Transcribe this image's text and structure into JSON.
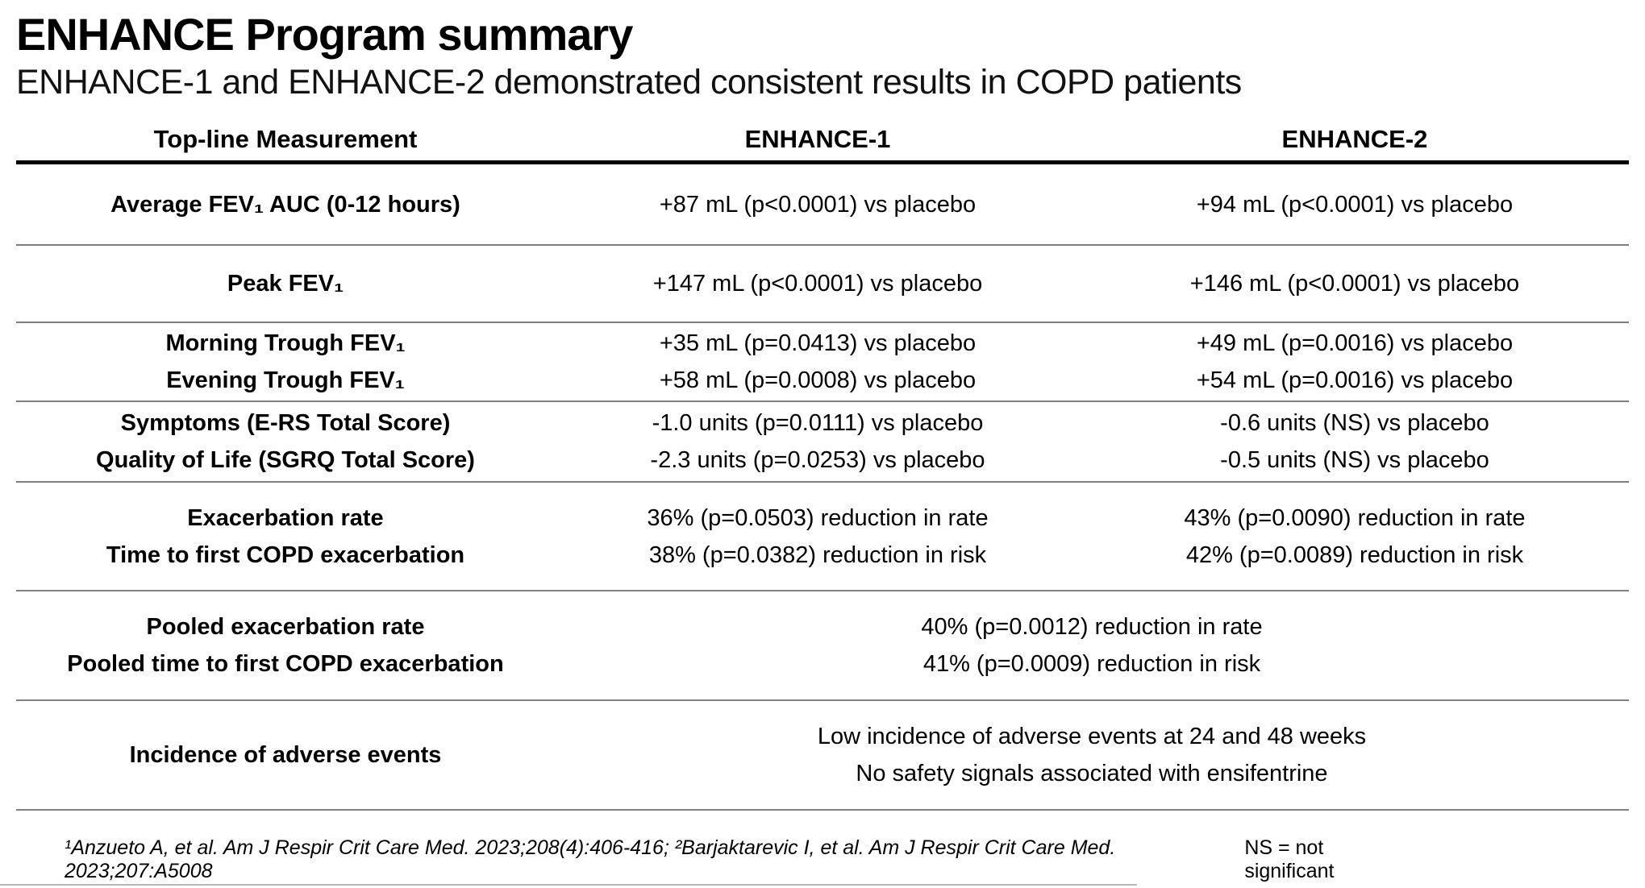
{
  "slide": {
    "title": "ENHANCE Program summary",
    "subtitle": "ENHANCE-1 and ENHANCE-2 demonstrated consistent results in COPD patients"
  },
  "table": {
    "headers": {
      "measurement": "Top-line Measurement",
      "enhance1": "ENHANCE-1",
      "enhance2": "ENHANCE-2"
    },
    "rows": [
      {
        "label": [
          "Average FEV₁ AUC (0-12 hours)"
        ],
        "enhance1": [
          "+87 mL (p<0.0001) vs placebo"
        ],
        "enhance2": [
          "+94 mL (p<0.0001) vs placebo"
        ]
      },
      {
        "label": [
          "Peak FEV₁"
        ],
        "enhance1": [
          "+147 mL (p<0.0001) vs placebo"
        ],
        "enhance2": [
          "+146 mL (p<0.0001) vs placebo"
        ]
      },
      {
        "label": [
          "Morning Trough FEV₁",
          "Evening Trough FEV₁"
        ],
        "enhance1": [
          "+35 mL (p=0.0413) vs placebo",
          "+58 mL (p=0.0008) vs placebo"
        ],
        "enhance2": [
          "+49 mL (p=0.0016) vs placebo",
          "+54 mL (p=0.0016) vs placebo"
        ]
      },
      {
        "label": [
          "Symptoms (E-RS Total Score)",
          "Quality of Life (SGRQ Total Score)"
        ],
        "enhance1": [
          "-1.0 units (p=0.0111) vs placebo",
          "-2.3 units (p=0.0253) vs placebo"
        ],
        "enhance2": [
          "-0.6 units (NS) vs placebo",
          "-0.5 units (NS) vs placebo"
        ]
      },
      {
        "label": [
          "Exacerbation rate",
          "Time to first COPD exacerbation"
        ],
        "enhance1": [
          "36% (p=0.0503) reduction in rate",
          "38% (p=0.0382) reduction in risk"
        ],
        "enhance2": [
          "43% (p=0.0090) reduction in rate",
          "42% (p=0.0089) reduction in risk"
        ]
      },
      {
        "label": [
          "Pooled exacerbation rate",
          "Pooled time to first COPD exacerbation"
        ],
        "pooled": [
          "40% (p=0.0012) reduction in rate",
          "41% (p=0.0009) reduction in risk"
        ]
      },
      {
        "label": [
          "Incidence of adverse events"
        ],
        "pooled": [
          "Low incidence of adverse events at 24 and 48 weeks",
          "No safety signals associated with ensifentrine"
        ]
      }
    ]
  },
  "footer": {
    "references": "¹Anzueto A, et al. Am J Respir Crit Care Med. 2023;208(4):406-416; ²Barjaktarevic I, et al. Am J Respir Crit Care Med. 2023;207:A5008",
    "ns_note": "NS = not significant"
  },
  "colors": {
    "background": "#ffffff",
    "text": "#000000",
    "header_rule": "#000000",
    "row_separator": "#7f7f7f"
  }
}
